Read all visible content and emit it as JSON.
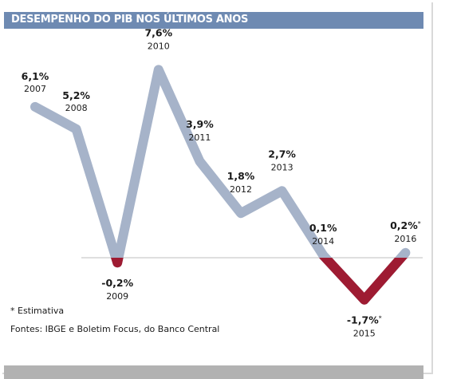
{
  "chart_data": {
    "type": "line",
    "title": "DESEMPENHO DO PIB NOS ÚLTIMOS ANOS",
    "categories": [
      "2007",
      "2008",
      "2009",
      "2010",
      "2011",
      "2012",
      "2013",
      "2014",
      "2015",
      "2016"
    ],
    "values": [
      6.1,
      5.2,
      -0.2,
      7.6,
      3.9,
      1.8,
      2.7,
      0.1,
      -1.7,
      0.2
    ],
    "value_labels": [
      "6,1%",
      "5,2%",
      "-0,2%",
      "7,6%",
      "3,9%",
      "1,8%",
      "2,7%",
      "0,1%",
      "-1,7%",
      "0,2%"
    ],
    "estimated_marker": [
      "",
      "",
      "",
      "",
      "",
      "",
      "",
      "",
      "*",
      "*"
    ],
    "baseline": 0,
    "colors": {
      "positive": "#a6b3c9",
      "negative": "#9e1b32",
      "baseline": "#bfbfbf",
      "title_bar": "#6e8ab2"
    }
  },
  "notes": {
    "footnote": "* Estimativa",
    "source": "Fontes: IBGE e Boletim Focus, do Banco Central"
  }
}
